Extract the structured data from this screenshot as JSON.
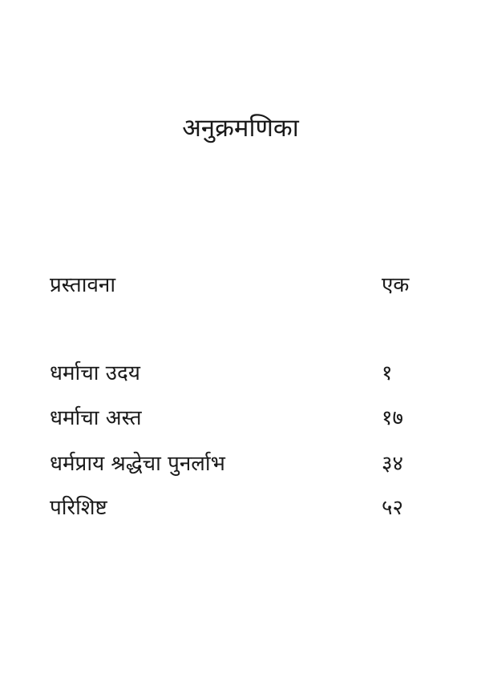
{
  "title": "अनुक्रमणिका",
  "entries": [
    {
      "label": "प्रस्तावना",
      "page": "एक"
    },
    {
      "label": "धर्माचा उदय",
      "page": "१"
    },
    {
      "label": "धर्माचा अस्त",
      "page": "१७"
    },
    {
      "label": "धर्मप्राय श्रद्धेचा पुनर्लाभ",
      "page": "३४"
    },
    {
      "label": "परिशिष्ट",
      "page": "५२"
    }
  ]
}
